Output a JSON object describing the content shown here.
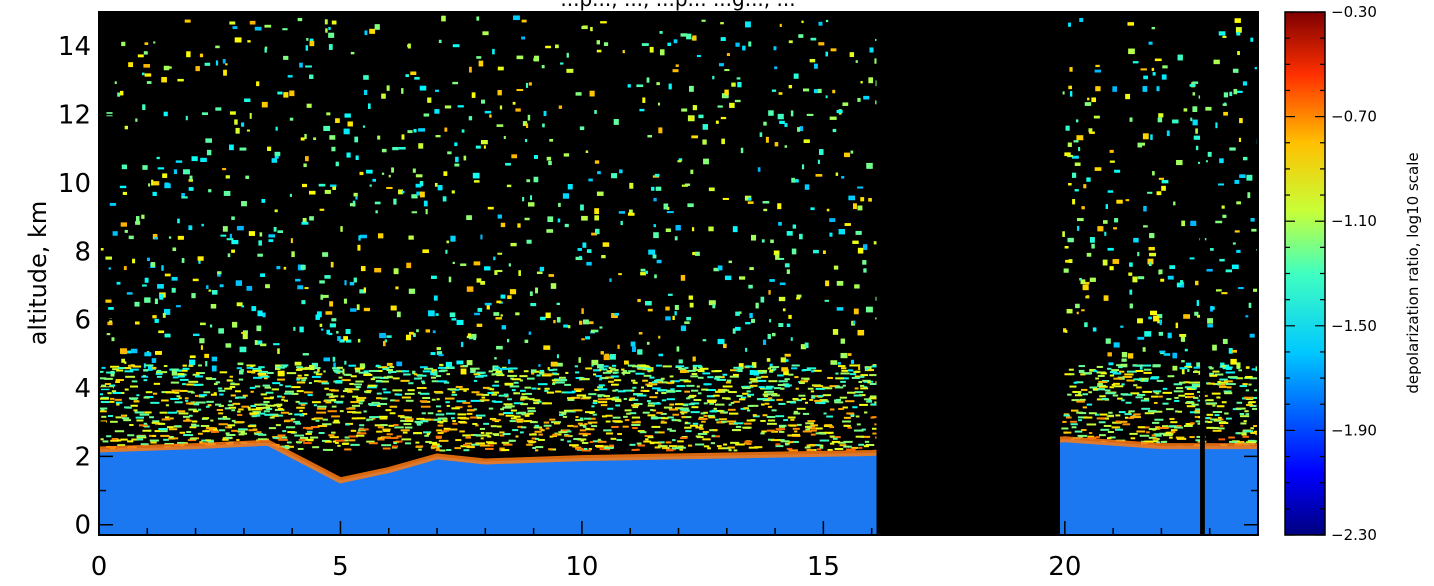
{
  "chart_data": {
    "type": "heatmap",
    "title_fragment": "...p..., ..., ...p... ...g..., ...",
    "xlabel": "",
    "ylabel": "altitude, km",
    "xlim": [
      0,
      24
    ],
    "ylim": [
      -0.3,
      15
    ],
    "x_ticks": [
      0,
      5,
      10,
      15,
      20
    ],
    "y_ticks": [
      0,
      2,
      4,
      6,
      8,
      10,
      12,
      14
    ],
    "x_tick_labels": [
      "0",
      "5",
      "10",
      "15",
      "20"
    ],
    "y_tick_labels": [
      "0",
      "2",
      "4",
      "6",
      "8",
      "10",
      "12",
      "14"
    ],
    "colorbar": {
      "label": "depolarization ratio, log10 scale",
      "range": [
        -2.3,
        -0.3
      ],
      "ticks": [
        -0.3,
        -0.7,
        -1.1,
        -1.5,
        -1.9,
        -2.3
      ],
      "tick_labels": [
        "−0.30",
        "−0.70",
        "−1.10",
        "−1.50",
        "−1.90",
        "−2.30"
      ]
    },
    "no_data_intervals": [
      [
        16.1,
        19.9
      ],
      [
        22.8,
        22.9
      ]
    ],
    "boundary_layer_top_km": [
      {
        "x": 0,
        "y": 2.2
      },
      {
        "x": 2,
        "y": 2.3
      },
      {
        "x": 3.5,
        "y": 2.4
      },
      {
        "x": 5,
        "y": 1.3
      },
      {
        "x": 6,
        "y": 1.6
      },
      {
        "x": 7,
        "y": 2.0
      },
      {
        "x": 8,
        "y": 1.85
      },
      {
        "x": 10,
        "y": 1.95
      },
      {
        "x": 12,
        "y": 2.0
      },
      {
        "x": 14,
        "y": 2.05
      },
      {
        "x": 16,
        "y": 2.1
      },
      {
        "x": 20,
        "y": 2.5
      },
      {
        "x": 22,
        "y": 2.3
      },
      {
        "x": 24,
        "y": 2.3
      }
    ],
    "grid": false,
    "legend": "colorbar-right"
  }
}
